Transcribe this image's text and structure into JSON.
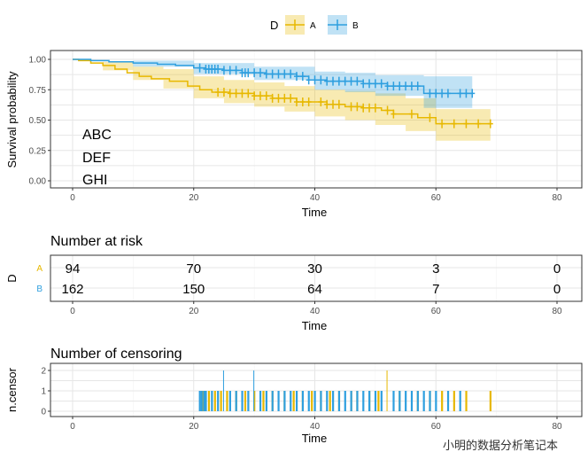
{
  "colors": {
    "A": "#E7B800",
    "B": "#2E9FDF"
  },
  "legend": {
    "title": "D",
    "items": [
      "A",
      "B"
    ]
  },
  "watermark": "小明的数据分析笔记本",
  "chart_data": [
    {
      "type": "line",
      "subtype": "kaplan-meier",
      "xlabel": "Time",
      "ylabel": "Survival probability",
      "xlim": [
        0,
        80
      ],
      "ylim": [
        0,
        1
      ],
      "xticks": [
        "0",
        "20",
        "40",
        "60",
        "80"
      ],
      "yticks": [
        "0.00",
        "0.25",
        "0.50",
        "0.75",
        "1.00"
      ],
      "annotations": [
        "ABC",
        "DEF",
        "GHI"
      ],
      "series": [
        {
          "name": "A",
          "steps": [
            [
              0,
              1
            ],
            [
              1,
              0.99
            ],
            [
              3,
              0.97
            ],
            [
              5,
              0.95
            ],
            [
              7,
              0.92
            ],
            [
              9,
              0.89
            ],
            [
              11,
              0.86
            ],
            [
              13,
              0.84
            ],
            [
              16,
              0.82
            ],
            [
              19,
              0.78
            ],
            [
              21,
              0.75
            ],
            [
              23,
              0.73
            ],
            [
              26,
              0.72
            ],
            [
              30,
              0.7
            ],
            [
              33,
              0.68
            ],
            [
              37,
              0.65
            ],
            [
              42,
              0.63
            ],
            [
              45,
              0.61
            ],
            [
              48,
              0.6
            ],
            [
              51,
              0.58
            ],
            [
              53,
              0.55
            ],
            [
              57,
              0.52
            ],
            [
              60,
              0.47
            ],
            [
              69,
              0.47
            ]
          ],
          "ci_upper": [
            [
              0,
              1
            ],
            [
              5,
              0.98
            ],
            [
              10,
              0.94
            ],
            [
              15,
              0.92
            ],
            [
              20,
              0.86
            ],
            [
              25,
              0.83
            ],
            [
              30,
              0.81
            ],
            [
              35,
              0.78
            ],
            [
              40,
              0.75
            ],
            [
              45,
              0.74
            ],
            [
              50,
              0.72
            ],
            [
              55,
              0.68
            ],
            [
              60,
              0.59
            ],
            [
              69,
              0.59
            ]
          ],
          "ci_lower": [
            [
              0,
              1
            ],
            [
              5,
              0.91
            ],
            [
              10,
              0.83
            ],
            [
              15,
              0.76
            ],
            [
              20,
              0.68
            ],
            [
              25,
              0.64
            ],
            [
              30,
              0.61
            ],
            [
              35,
              0.57
            ],
            [
              40,
              0.53
            ],
            [
              45,
              0.5
            ],
            [
              50,
              0.46
            ],
            [
              55,
              0.41
            ],
            [
              60,
              0.33
            ],
            [
              69,
              0.33
            ]
          ],
          "censor_times": [
            24,
            25,
            26,
            27,
            28,
            29,
            30,
            31,
            32,
            33,
            34,
            35,
            36,
            37,
            38,
            39,
            41,
            42,
            43,
            44,
            46,
            47,
            48,
            49,
            50,
            52,
            53,
            56,
            59,
            61,
            63,
            65,
            67,
            69
          ]
        },
        {
          "name": "B",
          "steps": [
            [
              0,
              1
            ],
            [
              3,
              0.99
            ],
            [
              6,
              0.98
            ],
            [
              10,
              0.97
            ],
            [
              14,
              0.96
            ],
            [
              17,
              0.95
            ],
            [
              20,
              0.93
            ],
            [
              22,
              0.92
            ],
            [
              25,
              0.91
            ],
            [
              28,
              0.89
            ],
            [
              32,
              0.88
            ],
            [
              37,
              0.86
            ],
            [
              39,
              0.83
            ],
            [
              42,
              0.82
            ],
            [
              48,
              0.8
            ],
            [
              52,
              0.78
            ],
            [
              58,
              0.72
            ],
            [
              66,
              0.72
            ]
          ],
          "ci_upper": [
            [
              0,
              1
            ],
            [
              10,
              0.99
            ],
            [
              20,
              0.97
            ],
            [
              30,
              0.94
            ],
            [
              40,
              0.9
            ],
            [
              45,
              0.89
            ],
            [
              50,
              0.87
            ],
            [
              58,
              0.86
            ],
            [
              66,
              0.86
            ]
          ],
          "ci_lower": [
            [
              0,
              1
            ],
            [
              10,
              0.94
            ],
            [
              20,
              0.88
            ],
            [
              30,
              0.83
            ],
            [
              40,
              0.75
            ],
            [
              45,
              0.73
            ],
            [
              50,
              0.7
            ],
            [
              58,
              0.6
            ],
            [
              66,
              0.6
            ]
          ],
          "censor_times": [
            21,
            22,
            22.5,
            23,
            23.5,
            24,
            25,
            26,
            27,
            28,
            28.5,
            29,
            30,
            31,
            32,
            33,
            34,
            35,
            36,
            37,
            38,
            39,
            40,
            41,
            42,
            43,
            44,
            45,
            46,
            47,
            48,
            49,
            50,
            51,
            52,
            53,
            54,
            55,
            56,
            57,
            59,
            60,
            61,
            62,
            64,
            65,
            66
          ]
        }
      ]
    },
    {
      "type": "table",
      "title": "Number at risk",
      "ylabel": "D",
      "xlabel": "Time",
      "xticks": [
        "0",
        "20",
        "40",
        "60",
        "80"
      ],
      "rows": [
        {
          "group": "A",
          "values": [
            "94",
            "70",
            "30",
            "3",
            "0"
          ]
        },
        {
          "group": "B",
          "values": [
            "162",
            "150",
            "64",
            "7",
            "0"
          ]
        }
      ]
    },
    {
      "type": "bar",
      "title": "Number of censoring",
      "ylabel": "n.censor",
      "xlabel": "Time",
      "xticks": [
        "0",
        "20",
        "40",
        "60",
        "80"
      ],
      "yticks": [
        "0",
        "1",
        "2"
      ],
      "ylim": [
        0,
        2
      ],
      "series": [
        {
          "name": "A",
          "times": [
            21.5,
            22.5,
            23.5,
            24.5,
            25.5,
            27,
            28.5,
            30,
            31.5,
            33,
            35,
            36.5,
            38,
            39.5,
            41,
            42.5,
            44,
            46,
            47,
            49,
            50.5,
            52,
            54,
            57,
            59,
            61,
            63,
            65,
            69
          ],
          "counts": [
            1,
            1,
            1,
            1,
            1,
            1,
            1,
            1,
            1,
            1,
            1,
            1,
            1,
            1,
            1,
            1,
            1,
            1,
            1,
            1,
            1,
            2,
            1,
            1,
            1,
            1,
            1,
            1,
            1
          ]
        },
        {
          "name": "B",
          "times": [
            21,
            21.3,
            21.7,
            22,
            23,
            24,
            25,
            26,
            27,
            28,
            29,
            30,
            31,
            32,
            33,
            34,
            35,
            36,
            37,
            38,
            39,
            40,
            41,
            42,
            43,
            44,
            45,
            46,
            47,
            48,
            49,
            50,
            51,
            53,
            54,
            55,
            56,
            57,
            58,
            59,
            60,
            62,
            64
          ],
          "counts": [
            1,
            1,
            1,
            1,
            1,
            1,
            2,
            1,
            1,
            1,
            1,
            2,
            1,
            1,
            1,
            1,
            1,
            1,
            1,
            1,
            1,
            1,
            1,
            1,
            1,
            1,
            1,
            1,
            1,
            1,
            1,
            1,
            1,
            1,
            1,
            1,
            1,
            1,
            1,
            1,
            1,
            1,
            1
          ]
        }
      ]
    }
  ]
}
